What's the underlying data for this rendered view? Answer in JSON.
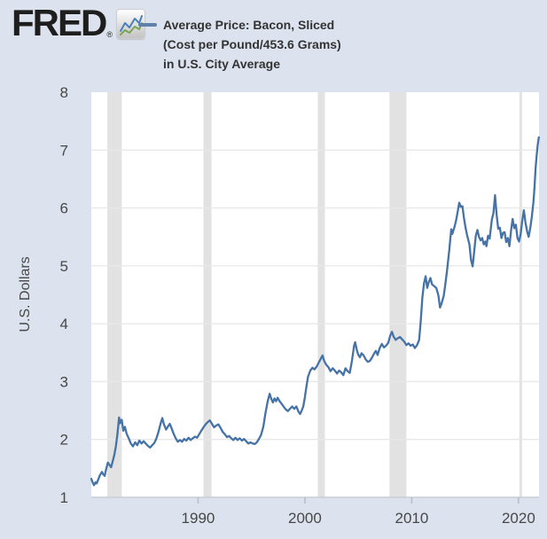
{
  "brand": {
    "logo_text": "FRED",
    "registered_mark": "®",
    "logo_icon": "fred-sparkline-icon"
  },
  "legend": {
    "series_label_lines": [
      "Average Price: Bacon, Sliced",
      "(Cost per Pound/453.6 Grams)",
      "in U.S. City Average"
    ],
    "swatch_color": "#5d81a8"
  },
  "colors": {
    "page_background": "#dde3ee",
    "plot_background": "#ffffff",
    "gridline": "#e8e8e8",
    "recession_band": "#e2e2e2",
    "axis_line": "#c9cdd6",
    "tick_mark": "#b7bcc6",
    "axis_text": "#474747",
    "legend_text": "#333333",
    "logo_text": "#1e1e1e",
    "logo_icon_blue": "#4b7fbf",
    "logo_icon_green": "#7aa354"
  },
  "chart_data": {
    "type": "line",
    "title": "Average Price: Bacon, Sliced (Cost per Pound/453.6 Grams) in U.S. City Average",
    "xlabel": "",
    "ylabel": "U.S. Dollars",
    "xlim": [
      1980.0,
      2021.92
    ],
    "ylim": [
      1,
      8
    ],
    "x_ticks": [
      1990,
      2000,
      2010,
      2020
    ],
    "y_ticks": [
      1,
      2,
      3,
      4,
      5,
      6,
      7,
      8
    ],
    "grid": "horizontal",
    "legend_position": "top",
    "line_color": "#4572a7",
    "line_width": 2.3,
    "recession_bands": [
      [
        1981.5,
        1982.85
      ],
      [
        1990.5,
        1991.25
      ],
      [
        2001.2,
        2001.87
      ],
      [
        2007.92,
        2009.5
      ],
      [
        2020.08,
        2020.33
      ]
    ],
    "series": [
      {
        "name": "Average Price: Bacon, Sliced (Cost per Pound/453.6 Grams) in U.S. City Average",
        "units": "U.S. Dollars",
        "points": [
          [
            1980.0,
            1.32
          ],
          [
            1980.1,
            1.27
          ],
          [
            1980.25,
            1.21
          ],
          [
            1980.4,
            1.26
          ],
          [
            1980.5,
            1.24
          ],
          [
            1980.7,
            1.33
          ],
          [
            1980.8,
            1.38
          ],
          [
            1981.0,
            1.44
          ],
          [
            1981.1,
            1.4
          ],
          [
            1981.25,
            1.37
          ],
          [
            1981.4,
            1.5
          ],
          [
            1981.55,
            1.6
          ],
          [
            1981.7,
            1.56
          ],
          [
            1981.85,
            1.52
          ],
          [
            1982.0,
            1.62
          ],
          [
            1982.15,
            1.73
          ],
          [
            1982.3,
            1.88
          ],
          [
            1982.45,
            2.1
          ],
          [
            1982.6,
            2.38
          ],
          [
            1982.7,
            2.28
          ],
          [
            1982.85,
            2.34
          ],
          [
            1983.0,
            2.15
          ],
          [
            1983.15,
            2.22
          ],
          [
            1983.3,
            2.1
          ],
          [
            1983.5,
            2.02
          ],
          [
            1983.7,
            1.93
          ],
          [
            1983.9,
            1.88
          ],
          [
            1984.1,
            1.95
          ],
          [
            1984.3,
            1.9
          ],
          [
            1984.5,
            1.98
          ],
          [
            1984.7,
            1.93
          ],
          [
            1984.9,
            1.97
          ],
          [
            1985.1,
            1.93
          ],
          [
            1985.3,
            1.89
          ],
          [
            1985.5,
            1.86
          ],
          [
            1985.7,
            1.9
          ],
          [
            1985.9,
            1.94
          ],
          [
            1986.1,
            2.02
          ],
          [
            1986.3,
            2.14
          ],
          [
            1986.5,
            2.28
          ],
          [
            1986.65,
            2.37
          ],
          [
            1986.8,
            2.26
          ],
          [
            1987.0,
            2.17
          ],
          [
            1987.2,
            2.23
          ],
          [
            1987.35,
            2.27
          ],
          [
            1987.5,
            2.2
          ],
          [
            1987.7,
            2.1
          ],
          [
            1987.9,
            2.02
          ],
          [
            1988.1,
            1.96
          ],
          [
            1988.3,
            1.99
          ],
          [
            1988.5,
            1.96
          ],
          [
            1988.7,
            2.01
          ],
          [
            1988.9,
            1.98
          ],
          [
            1989.1,
            2.03
          ],
          [
            1989.3,
            1.99
          ],
          [
            1989.5,
            2.02
          ],
          [
            1989.7,
            2.05
          ],
          [
            1989.9,
            2.03
          ],
          [
            1990.1,
            2.09
          ],
          [
            1990.3,
            2.15
          ],
          [
            1990.5,
            2.21
          ],
          [
            1990.7,
            2.26
          ],
          [
            1990.9,
            2.3
          ],
          [
            1991.1,
            2.33
          ],
          [
            1991.3,
            2.27
          ],
          [
            1991.5,
            2.21
          ],
          [
            1991.7,
            2.24
          ],
          [
            1991.9,
            2.26
          ],
          [
            1992.1,
            2.2
          ],
          [
            1992.3,
            2.13
          ],
          [
            1992.5,
            2.09
          ],
          [
            1992.7,
            2.04
          ],
          [
            1992.9,
            2.06
          ],
          [
            1993.1,
            2.02
          ],
          [
            1993.3,
            1.99
          ],
          [
            1993.5,
            2.03
          ],
          [
            1993.7,
            1.99
          ],
          [
            1993.9,
            2.02
          ],
          [
            1994.1,
            1.98
          ],
          [
            1994.3,
            2.01
          ],
          [
            1994.5,
            1.97
          ],
          [
            1994.7,
            1.93
          ],
          [
            1994.9,
            1.95
          ],
          [
            1995.1,
            1.93
          ],
          [
            1995.3,
            1.92
          ],
          [
            1995.5,
            1.95
          ],
          [
            1995.7,
            2.01
          ],
          [
            1995.9,
            2.08
          ],
          [
            1996.1,
            2.22
          ],
          [
            1996.3,
            2.45
          ],
          [
            1996.5,
            2.65
          ],
          [
            1996.7,
            2.79
          ],
          [
            1996.85,
            2.7
          ],
          [
            1997.0,
            2.64
          ],
          [
            1997.15,
            2.71
          ],
          [
            1997.3,
            2.66
          ],
          [
            1997.45,
            2.72
          ],
          [
            1997.6,
            2.67
          ],
          [
            1997.8,
            2.62
          ],
          [
            1998.0,
            2.57
          ],
          [
            1998.2,
            2.52
          ],
          [
            1998.4,
            2.49
          ],
          [
            1998.6,
            2.53
          ],
          [
            1998.8,
            2.57
          ],
          [
            1999.0,
            2.53
          ],
          [
            1999.2,
            2.57
          ],
          [
            1999.4,
            2.48
          ],
          [
            1999.55,
            2.44
          ],
          [
            1999.7,
            2.5
          ],
          [
            1999.85,
            2.57
          ],
          [
            2000.0,
            2.73
          ],
          [
            2000.15,
            2.92
          ],
          [
            2000.3,
            3.09
          ],
          [
            2000.5,
            3.19
          ],
          [
            2000.7,
            3.24
          ],
          [
            2000.9,
            3.21
          ],
          [
            2001.1,
            3.26
          ],
          [
            2001.3,
            3.33
          ],
          [
            2001.5,
            3.4
          ],
          [
            2001.65,
            3.45
          ],
          [
            2001.8,
            3.36
          ],
          [
            2002.0,
            3.29
          ],
          [
            2002.2,
            3.25
          ],
          [
            2002.4,
            3.18
          ],
          [
            2002.6,
            3.23
          ],
          [
            2002.8,
            3.19
          ],
          [
            2003.0,
            3.14
          ],
          [
            2003.2,
            3.19
          ],
          [
            2003.4,
            3.16
          ],
          [
            2003.6,
            3.11
          ],
          [
            2003.8,
            3.23
          ],
          [
            2004.0,
            3.18
          ],
          [
            2004.2,
            3.15
          ],
          [
            2004.4,
            3.35
          ],
          [
            2004.6,
            3.62
          ],
          [
            2004.7,
            3.68
          ],
          [
            2004.85,
            3.55
          ],
          [
            2005.0,
            3.46
          ],
          [
            2005.15,
            3.42
          ],
          [
            2005.3,
            3.49
          ],
          [
            2005.5,
            3.45
          ],
          [
            2005.7,
            3.38
          ],
          [
            2005.9,
            3.34
          ],
          [
            2006.1,
            3.36
          ],
          [
            2006.3,
            3.42
          ],
          [
            2006.5,
            3.49
          ],
          [
            2006.65,
            3.53
          ],
          [
            2006.8,
            3.46
          ],
          [
            2007.0,
            3.58
          ],
          [
            2007.2,
            3.65
          ],
          [
            2007.4,
            3.59
          ],
          [
            2007.6,
            3.62
          ],
          [
            2007.8,
            3.67
          ],
          [
            2008.0,
            3.8
          ],
          [
            2008.15,
            3.86
          ],
          [
            2008.3,
            3.78
          ],
          [
            2008.5,
            3.72
          ],
          [
            2008.7,
            3.75
          ],
          [
            2008.9,
            3.77
          ],
          [
            2009.1,
            3.73
          ],
          [
            2009.3,
            3.69
          ],
          [
            2009.5,
            3.63
          ],
          [
            2009.7,
            3.66
          ],
          [
            2009.9,
            3.62
          ],
          [
            2010.1,
            3.64
          ],
          [
            2010.3,
            3.58
          ],
          [
            2010.5,
            3.63
          ],
          [
            2010.7,
            3.72
          ],
          [
            2010.85,
            4.05
          ],
          [
            2011.0,
            4.45
          ],
          [
            2011.15,
            4.7
          ],
          [
            2011.3,
            4.82
          ],
          [
            2011.45,
            4.62
          ],
          [
            2011.6,
            4.72
          ],
          [
            2011.75,
            4.79
          ],
          [
            2011.9,
            4.68
          ],
          [
            2012.1,
            4.65
          ],
          [
            2012.3,
            4.62
          ],
          [
            2012.5,
            4.49
          ],
          [
            2012.65,
            4.28
          ],
          [
            2012.8,
            4.35
          ],
          [
            2013.0,
            4.48
          ],
          [
            2013.15,
            4.68
          ],
          [
            2013.3,
            4.91
          ],
          [
            2013.5,
            5.25
          ],
          [
            2013.7,
            5.63
          ],
          [
            2013.8,
            5.55
          ],
          [
            2014.0,
            5.67
          ],
          [
            2014.15,
            5.78
          ],
          [
            2014.3,
            5.93
          ],
          [
            2014.45,
            6.09
          ],
          [
            2014.6,
            6.02
          ],
          [
            2014.75,
            6.03
          ],
          [
            2014.9,
            5.82
          ],
          [
            2015.05,
            5.65
          ],
          [
            2015.2,
            5.52
          ],
          [
            2015.4,
            5.37
          ],
          [
            2015.55,
            5.1
          ],
          [
            2015.7,
            4.99
          ],
          [
            2015.85,
            5.25
          ],
          [
            2016.0,
            5.52
          ],
          [
            2016.15,
            5.62
          ],
          [
            2016.3,
            5.5
          ],
          [
            2016.45,
            5.44
          ],
          [
            2016.6,
            5.48
          ],
          [
            2016.75,
            5.37
          ],
          [
            2016.9,
            5.42
          ],
          [
            2017.0,
            5.34
          ],
          [
            2017.15,
            5.52
          ],
          [
            2017.3,
            5.47
          ],
          [
            2017.5,
            5.8
          ],
          [
            2017.65,
            5.91
          ],
          [
            2017.8,
            6.22
          ],
          [
            2017.95,
            5.88
          ],
          [
            2018.1,
            5.64
          ],
          [
            2018.25,
            5.66
          ],
          [
            2018.4,
            5.48
          ],
          [
            2018.55,
            5.57
          ],
          [
            2018.7,
            5.58
          ],
          [
            2018.85,
            5.41
          ],
          [
            2019.0,
            5.48
          ],
          [
            2019.15,
            5.34
          ],
          [
            2019.3,
            5.6
          ],
          [
            2019.45,
            5.81
          ],
          [
            2019.6,
            5.65
          ],
          [
            2019.75,
            5.71
          ],
          [
            2019.9,
            5.48
          ],
          [
            2020.05,
            5.42
          ],
          [
            2020.2,
            5.55
          ],
          [
            2020.35,
            5.78
          ],
          [
            2020.5,
            5.96
          ],
          [
            2020.65,
            5.75
          ],
          [
            2020.8,
            5.6
          ],
          [
            2020.95,
            5.5
          ],
          [
            2021.1,
            5.65
          ],
          [
            2021.25,
            5.85
          ],
          [
            2021.4,
            6.1
          ],
          [
            2021.5,
            6.35
          ],
          [
            2021.6,
            6.68
          ],
          [
            2021.7,
            6.9
          ],
          [
            2021.8,
            7.1
          ],
          [
            2021.9,
            7.22
          ]
        ]
      }
    ]
  }
}
